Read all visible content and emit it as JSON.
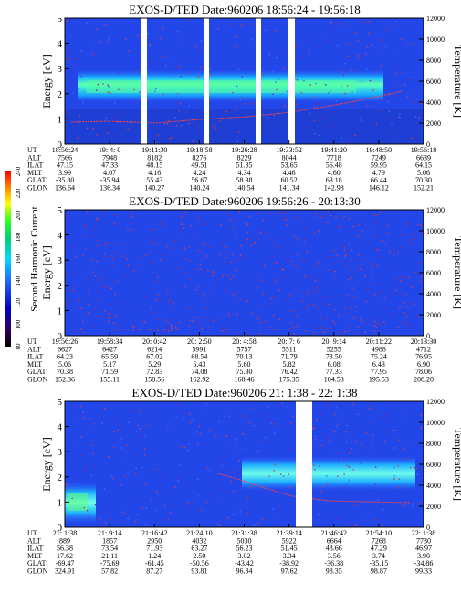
{
  "colorbar": {
    "label": "Second Harmonic Current",
    "ticks": [
      "240",
      "220",
      "200",
      "180",
      "160",
      "140",
      "120",
      "100",
      "80"
    ]
  },
  "panels": [
    {
      "title": "EXOS-D/TED   Date:960206  18:56:24 - 19:56:18",
      "ylabel": "Energy [eV]",
      "y2label": "Temperature [K]",
      "yticks": [
        "5",
        "4",
        "3",
        "2",
        "1",
        "0"
      ],
      "y2ticks": [
        "12000",
        "10000",
        "8000",
        "6000",
        "4000",
        "2000",
        "0"
      ],
      "row_names": [
        "UT",
        "ALT",
        "ILAT",
        "MLT",
        "GLAT",
        "GLON"
      ],
      "columns": [
        [
          "18:56:24",
          "7566",
          "47.15",
          "3.99",
          "-35.80",
          "136.64"
        ],
        [
          "19: 4: 0",
          "7948",
          "47.33",
          "4.07",
          "-35.94",
          "136.34"
        ],
        [
          "19:11:30",
          "8182",
          "48.15",
          "4.16",
          "55.43",
          "140.27"
        ],
        [
          "19:18:58",
          "8276",
          "49.51",
          "4.24",
          "56.67",
          "140.24"
        ],
        [
          "19:26:28",
          "8229",
          "51.35",
          "4.34",
          "58.38",
          "140.54"
        ],
        [
          "19:33:52",
          "8044",
          "53.65",
          "4.46",
          "60.52",
          "141.34"
        ],
        [
          "19:41:20",
          "7718",
          "56.48",
          "4.60",
          "63.18",
          "142.98"
        ],
        [
          "19:48:50",
          "7249",
          "59.95",
          "4.79",
          "66.44",
          "146.12"
        ],
        [
          "19:56:18",
          "6639",
          "64.15",
          "5.06",
          "70.30",
          "152.21"
        ]
      ]
    },
    {
      "title": "EXOS-D/TED   Date:960206  19:56:26 - 20:13:30",
      "ylabel": "Energy [eV]",
      "y2label": "Temperature [K]",
      "yticks": [
        "5",
        "4",
        "3",
        "2",
        "1",
        "0"
      ],
      "y2ticks": [
        "12000",
        "10000",
        "8000",
        "6000",
        "4000",
        "2000",
        "0"
      ],
      "row_names": [
        "UT",
        "ALT",
        "ILAT",
        "MLT",
        "GLAT",
        "GLON"
      ],
      "columns": [
        [
          "19:56:26",
          "6627",
          "64.23",
          "5.06",
          "70.38",
          "152.36"
        ],
        [
          "19:58:34",
          "6427",
          "65.59",
          "5.17",
          "71.59",
          "155.11"
        ],
        [
          "20: 0:42",
          "6214",
          "67.02",
          "5.29",
          "72.83",
          "158.56"
        ],
        [
          "20: 2:50",
          "5991",
          "68.54",
          "5.43",
          "74.08",
          "162.92"
        ],
        [
          "20: 4:58",
          "5757",
          "70.13",
          "5.60",
          "75.30",
          "168.46"
        ],
        [
          "20: 7: 6",
          "5511",
          "71.79",
          "5.82",
          "76.42",
          "175.35"
        ],
        [
          "20: 9:14",
          "5255",
          "73.50",
          "6.08",
          "77.33",
          "184.53"
        ],
        [
          "20:11:22",
          "4988",
          "75.24",
          "6.43",
          "77.95",
          "195.53"
        ],
        [
          "20:13:30",
          "4712",
          "76.95",
          "6.90",
          "78.06",
          "208.20"
        ]
      ]
    },
    {
      "title": "EXOS-D/TED   Date:960206  21: 1:38 - 22: 1:38",
      "ylabel": "Energy [eV]",
      "y2label": "Temperature [K]",
      "yticks": [
        "5",
        "4",
        "3",
        "2",
        "1",
        "0"
      ],
      "y2ticks": [
        "12000",
        "10000",
        "8000",
        "6000",
        "4000",
        "2000",
        "0"
      ],
      "row_names": [
        "UT",
        "ALT",
        "ILAT",
        "MLT",
        "GLAT",
        "GLON"
      ],
      "columns": [
        [
          "21: 1:38",
          "889",
          "56.38",
          "17.62",
          "-69.47",
          "324.91"
        ],
        [
          "21: 9:14",
          "1857",
          "73.54",
          "21.11",
          "-75.69",
          "57.82"
        ],
        [
          "21:16:42",
          "2950",
          "71.93",
          "1.24",
          "-61.45",
          "87.27"
        ],
        [
          "21:24:10",
          "4032",
          "63.27",
          "2.50",
          "-50.56",
          "93.81"
        ],
        [
          "21:31:38",
          "5030",
          "56.23",
          "3.02",
          "-43.42",
          "96.34"
        ],
        [
          "21:39:14",
          "5922",
          "51.45",
          "3.34",
          "-38.92",
          "97.62"
        ],
        [
          "21:46:42",
          "6664",
          "48.66",
          "3.56",
          "-36.38",
          "98.35"
        ],
        [
          "21:54:10",
          "7268",
          "47.29",
          "3.74",
          "-35.15",
          "98.87"
        ],
        [
          "22: 1:38",
          "7730",
          "46.97",
          "3.90",
          "-34.86",
          "99.33"
        ]
      ]
    }
  ],
  "chart_data": [
    {
      "type": "heatmap",
      "title": "EXOS-D/TED   Date:960206  18:56:24 - 19:56:18",
      "xlabel": "UT",
      "ylabel": "Energy [eV]",
      "y2label": "Temperature [K]",
      "x_range": [
        "18:56:24",
        "19:56:18"
      ],
      "ylim": [
        0,
        5
      ],
      "y2lim": [
        0,
        12000
      ],
      "colorbar_range": [
        80,
        240
      ],
      "features": [
        {
          "name": "",
          "type": "band",
          "x_from": "18:56:24",
          "x_to": "19:48:50",
          "center_eV": 2.3,
          "width_eV": 0.8
        },
        {
          "name": "",
          "type": "line",
          "x": [
            "18:56:24",
            "19:11:30",
            "19:26:28",
            "19:41:20",
            "19:56:18"
          ],
          "temperature_K": [
            2500,
            2300,
            2700,
            3300,
            3800
          ]
        }
      ],
      "data_gaps": [
        [
          "19: 9:40",
          "19:10:40"
        ],
        [
          "19:18:20",
          "19:19:20"
        ],
        [
          "19:26:00",
          "19:27:00"
        ],
        [
          "19:33:10",
          "19:34:40"
        ]
      ]
    },
    {
      "type": "heatmap",
      "title": "EXOS-D/TED   Date:960206  19:56:26 - 20:13:30",
      "xlabel": "UT",
      "ylabel": "Energy [eV]",
      "y2label": "Temperature [K]",
      "x_range": [
        "19:56:26",
        "20:13:30"
      ],
      "ylim": [
        0,
        5
      ],
      "y2lim": [
        0,
        12000
      ],
      "colorbar_range": [
        80,
        240
      ],
      "features": []
    },
    {
      "type": "heatmap",
      "title": "EXOS-D/TED   Date:960206  21: 1:38 - 22: 1:38",
      "xlabel": "UT",
      "ylabel": "Energy [eV]",
      "y2label": "Temperature [K]",
      "x_range": [
        "21: 1:38",
        "22: 1:38"
      ],
      "ylim": [
        0,
        5
      ],
      "y2lim": [
        0,
        12000
      ],
      "colorbar_range": [
        80,
        240
      ],
      "features": [
        {
          "name": "",
          "type": "band",
          "x_from": "21: 1:38",
          "x_to": "21: 4:30",
          "center_eV": 1.0,
          "width_eV": 1.0
        },
        {
          "name": "",
          "type": "band",
          "x_from": "21:31:38",
          "x_to": "22: 1:38",
          "center_eV": 2.2,
          "width_eV": 0.9
        },
        {
          "name": "",
          "type": "line",
          "x": [
            "21:24:10",
            "21:31:38",
            "21:39:14",
            "21:46:42",
            "21:54:10",
            "22: 1:38"
          ],
          "temperature_K": [
            3600,
            3200,
            2900,
            2600,
            2500,
            2500
          ]
        }
      ],
      "data_gaps": [
        [
          "21:39:40",
          "21:43:40"
        ]
      ]
    }
  ]
}
